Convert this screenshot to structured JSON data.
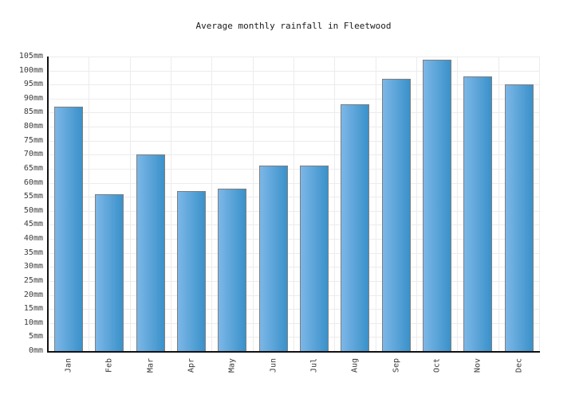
{
  "title": "Average monthly rainfall in Fleetwood",
  "chart_data": {
    "type": "bar",
    "title": "Average monthly rainfall in Fleetwood",
    "categories": [
      "Jan",
      "Feb",
      "Mar",
      "Apr",
      "May",
      "Jun",
      "Jul",
      "Aug",
      "Sep",
      "Oct",
      "Nov",
      "Dec"
    ],
    "values": [
      87,
      56,
      70,
      57,
      58,
      66,
      66,
      88,
      97,
      104,
      98,
      95
    ],
    "unit": "mm",
    "xlabel": "",
    "ylabel": "",
    "ylim": [
      0,
      105
    ],
    "ytick_step": 5,
    "ytick_labels": [
      "0mm",
      "5mm",
      "10mm",
      "15mm",
      "20mm",
      "25mm",
      "30mm",
      "35mm",
      "40mm",
      "45mm",
      "50mm",
      "55mm",
      "60mm",
      "65mm",
      "70mm",
      "75mm",
      "80mm",
      "85mm",
      "90mm",
      "95mm",
      "100mm",
      "105mm"
    ],
    "grid": true,
    "legend": false,
    "colors": {
      "background": "#ffffff",
      "title_color": "#1a1a1a",
      "label_color": "#3c3c3c",
      "axis_color": "#111111",
      "grid_color": "#ececec",
      "bar_gradient_left": "#7cb7e7",
      "bar_gradient_right": "#3a91ca",
      "bar_border": "#7e7e7e"
    }
  }
}
